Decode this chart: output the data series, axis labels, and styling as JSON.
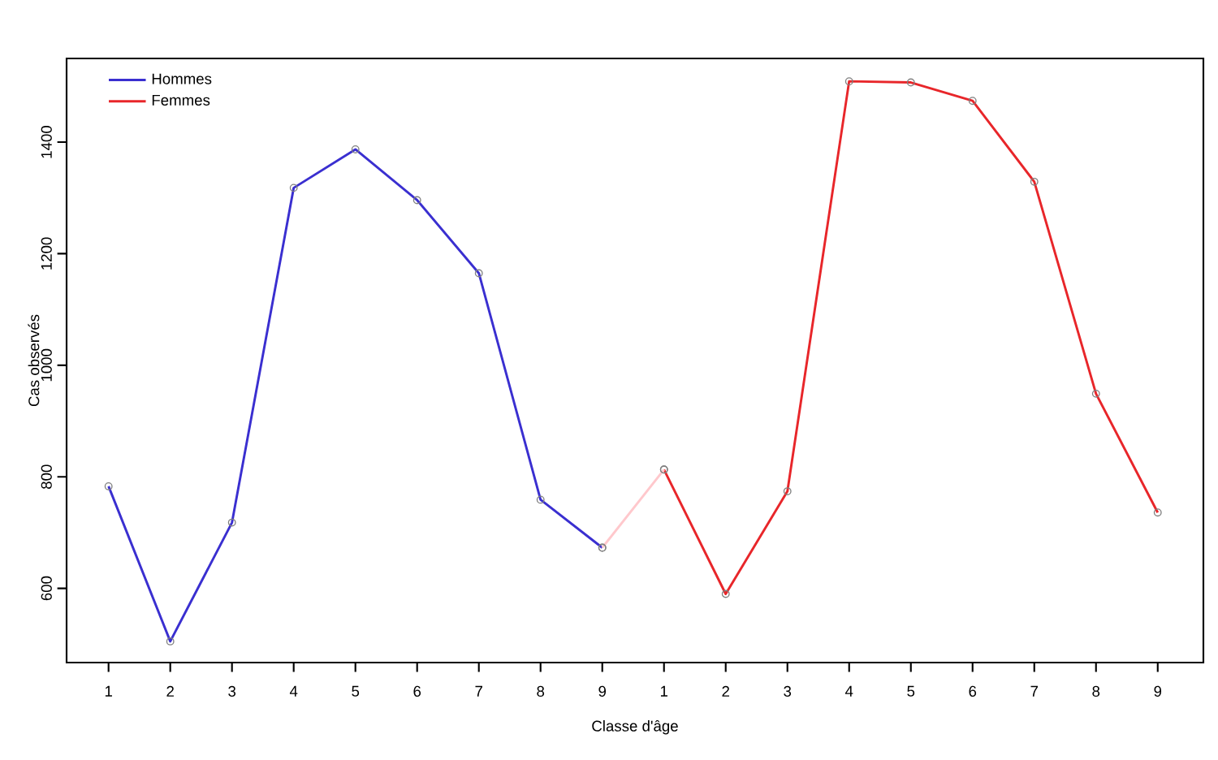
{
  "chart_data": {
    "type": "line",
    "xlabel": "Classe d'âge",
    "ylabel": "Cas observés",
    "categories": [
      "1",
      "2",
      "3",
      "4",
      "5",
      "6",
      "7",
      "8",
      "9",
      "1",
      "2",
      "3",
      "4",
      "5",
      "6",
      "7",
      "8",
      "9"
    ],
    "series": [
      {
        "name": "Hommes",
        "color": "#3a2fd0",
        "values": [
          783,
          505,
          718,
          1318,
          1387,
          1296,
          1165,
          759,
          673,
          null,
          null,
          null,
          null,
          null,
          null,
          null,
          null,
          null
        ]
      },
      {
        "name": "Femmes",
        "color": "#e8262a",
        "values": [
          null,
          null,
          null,
          null,
          null,
          null,
          null,
          null,
          null,
          813,
          590,
          774,
          1509,
          1507,
          1474,
          1329,
          949,
          736
        ]
      },
      {
        "color": "#ffc8cc",
        "values": [
          null,
          null,
          null,
          null,
          null,
          null,
          null,
          null,
          673,
          813,
          null,
          null,
          null,
          null,
          null,
          null,
          null,
          null
        ]
      }
    ],
    "ylim": [
      467,
      1550
    ],
    "yticks": [
      600,
      800,
      1000,
      1200,
      1400
    ],
    "marker": "circle",
    "line_style": "solid",
    "legend": "top left",
    "grid": false
  }
}
